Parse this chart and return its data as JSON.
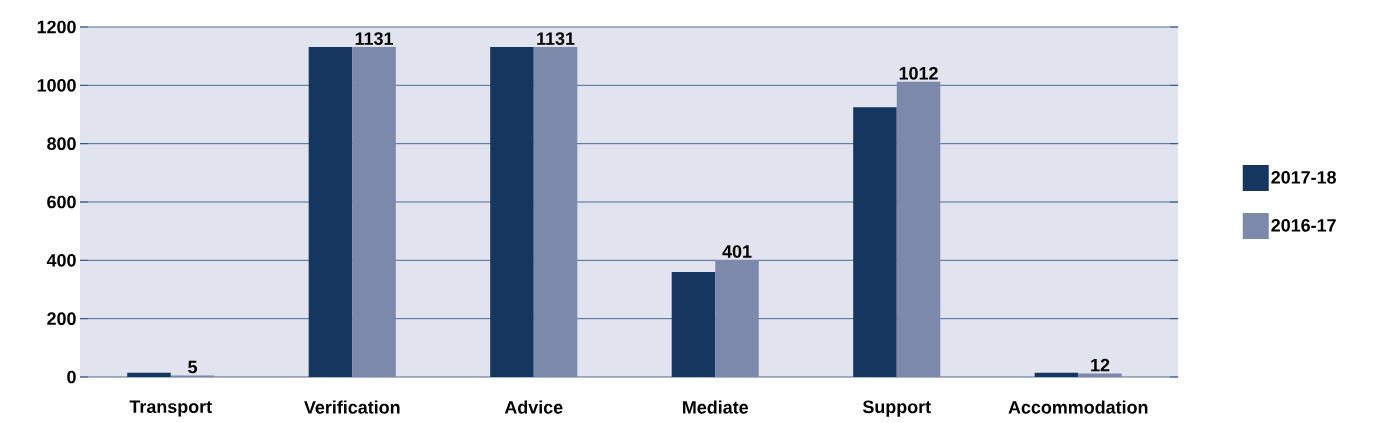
{
  "chart_data": {
    "type": "bar",
    "categories": [
      "Transport",
      "Verification",
      "Advice",
      "Mediate",
      "Support",
      "Accommodation"
    ],
    "series": [
      {
        "name": "2017-18",
        "color": "#15365f",
        "values": [
          15,
          1131,
          1131,
          360,
          925,
          15
        ]
      },
      {
        "name": "2016-17",
        "color": "#7d89ab",
        "values": [
          5,
          1131,
          1131,
          401,
          1012,
          12
        ],
        "value_labels": [
          "5",
          "1131",
          "1131",
          "401",
          "1012",
          "12"
        ]
      }
    ],
    "ylim": [
      0,
      1200
    ],
    "yticks": [
      0,
      200,
      400,
      600,
      800,
      1000,
      1200
    ],
    "grid": "y",
    "legend": "right"
  }
}
